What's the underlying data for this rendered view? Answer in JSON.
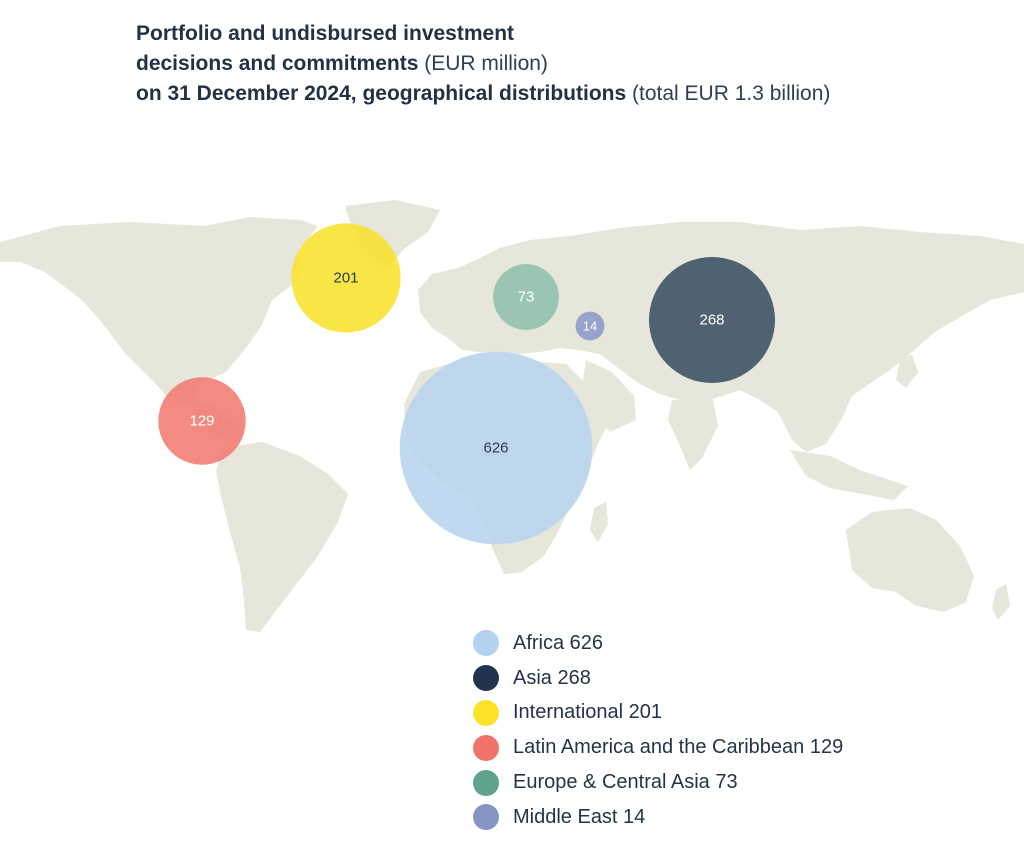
{
  "title": {
    "line1_bold": "Portfolio and undisbursed investment",
    "line2_bold": "decisions and commitments",
    "line2_light": "(EUR million)",
    "line3_bold": "on 31 December 2024, geographical distributions",
    "line3_light": "(total EUR 1.3 billion)"
  },
  "chart_data": {
    "type": "bubble_map",
    "unit": "EUR million",
    "total": "EUR 1.3 billion",
    "series": [
      {
        "region": "Africa",
        "value": 626,
        "color": "#b7d4ee",
        "label_color": "#2c3d52"
      },
      {
        "region": "Asia",
        "value": 268,
        "color": "#3b4e62",
        "label_color": "#ffffff"
      },
      {
        "region": "International",
        "value": 201,
        "color": "#f9e12e",
        "label_color": "#2c3d52"
      },
      {
        "region": "Latin America and the Caribbean",
        "value": 129,
        "color": "#f27b72",
        "label_color": "#ffffff"
      },
      {
        "region": "Europe & Central Asia",
        "value": 73,
        "color": "#8fc0ac",
        "label_color": "#ffffff"
      },
      {
        "region": "Middle East",
        "value": 14,
        "color": "#8c9ac8",
        "label_color": "#ffffff"
      }
    ]
  },
  "legend": [
    {
      "label": "Africa 626",
      "color": "#b3d2ee"
    },
    {
      "label": "Asia 268",
      "color": "#22344d"
    },
    {
      "label": "International 201",
      "color": "#fde22a"
    },
    {
      "label": "Latin America and the Caribbean 129",
      "color": "#f0746b"
    },
    {
      "label": "Europe & Central Asia 73",
      "color": "#5fa28e"
    },
    {
      "label": "Middle East 14",
      "color": "#8794c4"
    }
  ]
}
